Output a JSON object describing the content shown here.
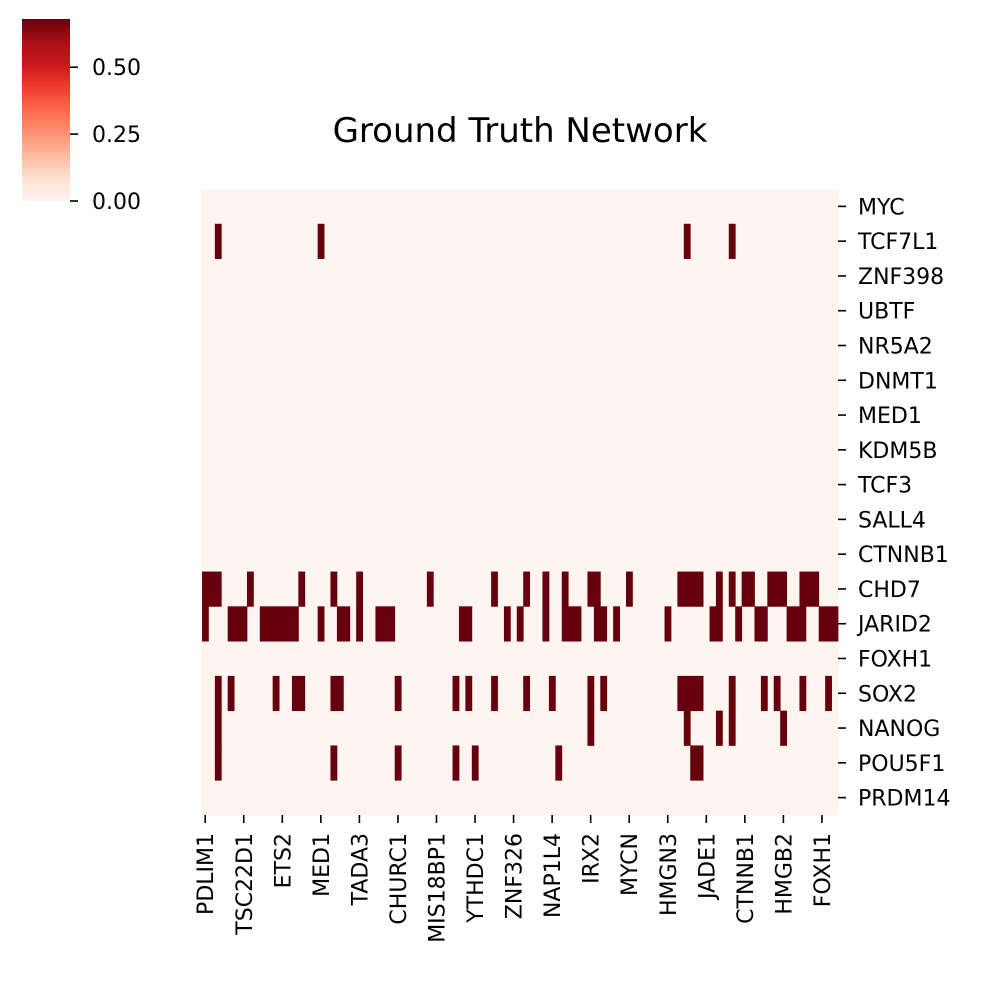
{
  "chart_data": {
    "type": "heatmap",
    "title": "Ground Truth Network",
    "xlabel": "",
    "ylabel": "",
    "colormap": "Reds",
    "colormap_stops": [
      "#fff5f0",
      "#fee0d2",
      "#fcbba1",
      "#fc9272",
      "#fb6a4a",
      "#ef3b2c",
      "#cb181d",
      "#a50f15",
      "#67000d"
    ],
    "vmin": 0,
    "vmax": 0.68,
    "colorbar_ticks": [
      0.0,
      0.25,
      0.5
    ],
    "colorbar_tick_labels": [
      "0.00",
      "0.25",
      "0.50"
    ],
    "rows": [
      "MYC",
      "TCF7L1",
      "ZNF398",
      "UBTF",
      "NR5A2",
      "DNMT1",
      "MED1",
      "KDM5B",
      "TCF3",
      "SALL4",
      "CTNNB1",
      "CHD7",
      "JARID2",
      "FOXH1",
      "SOX2",
      "NANOG",
      "POU5F1",
      "PRDM14"
    ],
    "n_columns": 99,
    "x_tick_columns": [
      0,
      6,
      12,
      18,
      24,
      30,
      36,
      42,
      48,
      54,
      60,
      66,
      72,
      78,
      84,
      90,
      96
    ],
    "x_tick_labels": [
      "PDLIM1",
      "TSC22D1",
      "ETS2",
      "MED1",
      "TADA3",
      "CHURC1",
      "MIS18BP1",
      "YTHDC1",
      "ZNF326",
      "NAP1L4",
      "IRX2",
      "MYCN",
      "HMGN3",
      "JADE1",
      "CTNNB1",
      "HMGB2",
      "FOXH1"
    ],
    "value": 0.68,
    "nonzero_cells": {
      "TCF7L1": [
        2,
        18,
        75,
        82
      ],
      "CHD7": [
        0,
        1,
        2,
        7,
        15,
        20,
        24,
        35,
        45,
        50,
        53,
        56,
        60,
        61,
        66,
        74,
        75,
        76,
        77,
        80,
        82,
        84,
        85,
        88,
        89,
        90,
        93,
        94,
        95
      ],
      "JARID2": [
        0,
        4,
        5,
        6,
        9,
        10,
        11,
        12,
        13,
        14,
        18,
        21,
        22,
        24,
        27,
        28,
        29,
        40,
        41,
        47,
        49,
        53,
        56,
        57,
        58,
        61,
        62,
        64,
        72,
        79,
        80,
        83,
        86,
        87,
        91,
        92,
        93,
        96,
        97,
        98
      ],
      "SOX2": [
        2,
        4,
        11,
        14,
        15,
        20,
        21,
        30,
        39,
        41,
        45,
        50,
        54,
        60,
        62,
        74,
        75,
        76,
        77,
        82,
        87,
        89,
        93,
        97
      ],
      "NANOG": [
        2,
        60,
        75,
        80,
        82,
        90
      ],
      "POU5F1": [
        2,
        20,
        30,
        39,
        42,
        55,
        76,
        77
      ]
    }
  }
}
